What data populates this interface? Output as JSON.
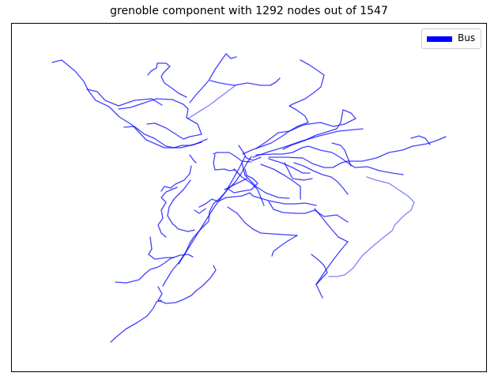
{
  "title": "grenoble component with 1292 nodes out of 1547",
  "legend": {
    "label": "Bus",
    "color": "#0000ff"
  },
  "edge_color": "#0000ff"
}
